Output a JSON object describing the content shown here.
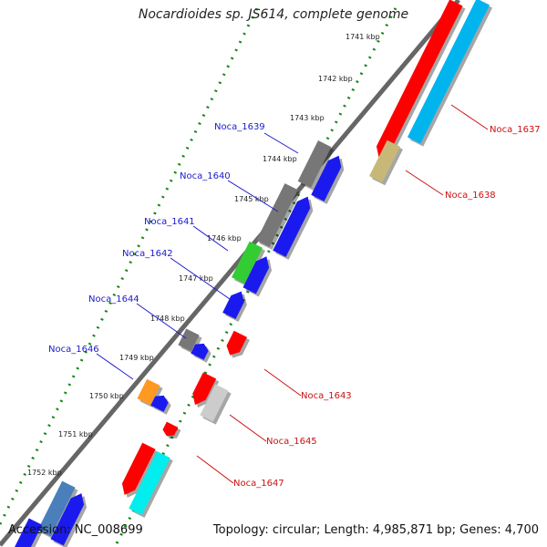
{
  "title": "Nocardioides sp. JS614, complete genome",
  "accession": "Accession: NC_008699",
  "topology": "Topology: circular; Length: 4,985,871 bp; Genes: 4,700",
  "colors": {
    "label_upper": "#1a1acc",
    "label_lower": "#cc1111",
    "backbone": "#888888",
    "tick": "#118811"
  },
  "ticks": [
    {
      "label": "1741 kbp"
    },
    {
      "label": "1742 kbp"
    },
    {
      "label": "1743 kbp"
    },
    {
      "label": "1744 kbp"
    },
    {
      "label": "1745 kbp"
    },
    {
      "label": "1746 kbp"
    },
    {
      "label": "1747 kbp"
    },
    {
      "label": "1748 kbp"
    },
    {
      "label": "1749 kbp"
    },
    {
      "label": "1750 kbp"
    },
    {
      "label": "1751 kbp"
    },
    {
      "label": "1752 kbp"
    }
  ],
  "gene_labels": [
    {
      "text": "Noca_1639",
      "side": "upper"
    },
    {
      "text": "Noca_1640",
      "side": "upper"
    },
    {
      "text": "Noca_1641",
      "side": "upper"
    },
    {
      "text": "Noca_1642",
      "side": "upper"
    },
    {
      "text": "Noca_1644",
      "side": "upper"
    },
    {
      "text": "Noca_1646",
      "side": "upper"
    },
    {
      "text": "Noca_1637",
      "side": "lower"
    },
    {
      "text": "Noca_1638",
      "side": "lower"
    },
    {
      "text": "Noca_1643",
      "side": "lower"
    },
    {
      "text": "Noca_1645",
      "side": "lower"
    },
    {
      "text": "Noca_1647",
      "side": "lower"
    }
  ],
  "genes": [
    {
      "color": "#ff0000"
    },
    {
      "color": "#00b4ee"
    },
    {
      "color": "#c8b878"
    },
    {
      "color": "#777777"
    },
    {
      "color": "#1a1aee"
    },
    {
      "color": "#777777"
    },
    {
      "color": "#1a1aee"
    },
    {
      "color": "#33cc33"
    },
    {
      "color": "#1a1aee"
    },
    {
      "color": "#1a1aee"
    },
    {
      "color": "#777777"
    },
    {
      "color": "#1a1aee"
    },
    {
      "color": "#ff0000"
    },
    {
      "color": "#ff9922"
    },
    {
      "color": "#1a1aee"
    },
    {
      "color": "#ff0000"
    },
    {
      "color": "#cccccc"
    },
    {
      "color": "#ff0000"
    },
    {
      "color": "#ff0000"
    },
    {
      "color": "#00eeee"
    },
    {
      "color": "#4a7fbb"
    },
    {
      "color": "#1a1aee"
    },
    {
      "color": "#1a1aee"
    }
  ]
}
